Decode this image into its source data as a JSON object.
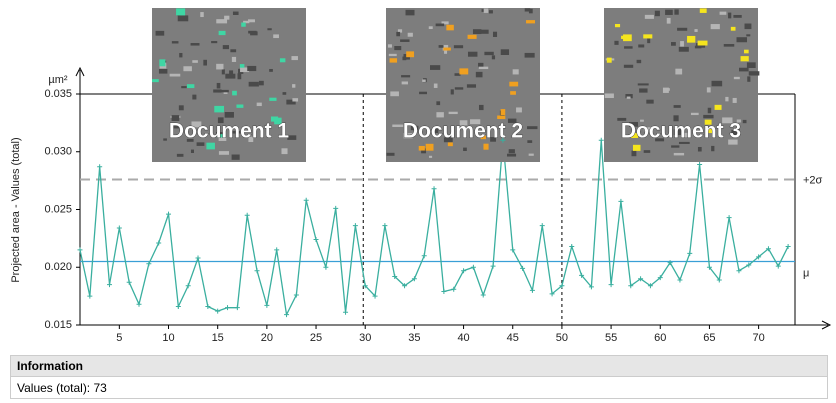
{
  "chart_data": {
    "type": "line",
    "y_label": "Projected area - Values (total)",
    "y_unit": "µm²",
    "x": [
      1,
      2,
      3,
      4,
      5,
      6,
      7,
      8,
      9,
      10,
      11,
      12,
      13,
      14,
      15,
      16,
      17,
      18,
      19,
      20,
      21,
      22,
      23,
      24,
      25,
      26,
      27,
      28,
      29,
      30,
      31,
      32,
      33,
      34,
      35,
      36,
      37,
      38,
      39,
      40,
      41,
      42,
      43,
      44,
      45,
      46,
      47,
      48,
      49,
      50,
      51,
      52,
      53,
      54,
      55,
      56,
      57,
      58,
      59,
      60,
      61,
      62,
      63,
      64,
      65,
      66,
      67,
      68,
      69,
      70,
      71,
      72,
      73
    ],
    "series": [
      {
        "name": "Values (total)",
        "color": "#3aaf9f",
        "values": [
          0.0215,
          0.0175,
          0.0287,
          0.0185,
          0.0234,
          0.0187,
          0.0168,
          0.0203,
          0.0221,
          0.0246,
          0.0166,
          0.0184,
          0.0208,
          0.0166,
          0.0162,
          0.0165,
          0.0165,
          0.0245,
          0.0197,
          0.0167,
          0.0215,
          0.0159,
          0.0176,
          0.0258,
          0.0224,
          0.02,
          0.0251,
          0.0161,
          0.0236,
          0.0184,
          0.0175,
          0.0236,
          0.0192,
          0.0184,
          0.019,
          0.021,
          0.0268,
          0.0179,
          0.0181,
          0.0197,
          0.02,
          0.0176,
          0.0201,
          0.031,
          0.0215,
          0.0199,
          0.018,
          0.0236,
          0.0177,
          0.0184,
          0.0218,
          0.0193,
          0.0183,
          0.031,
          0.0185,
          0.0257,
          0.0184,
          0.019,
          0.0184,
          0.0191,
          0.0204,
          0.0189,
          0.0212,
          0.0289,
          0.02,
          0.0189,
          0.0243,
          0.0197,
          0.0202,
          0.0209,
          0.0216,
          0.0201,
          0.0218
        ]
      }
    ],
    "xlim": [
      1,
      73.7
    ],
    "xticks": [
      5,
      10,
      15,
      20,
      25,
      30,
      35,
      40,
      45,
      50,
      55,
      60,
      65,
      70
    ],
    "ylim": [
      0.015,
      0.035
    ],
    "yticks": [
      0.015,
      {
        "value": 0.02,
        "label": "0.020"
      },
      0.025,
      {
        "value": 0.03,
        "label": "0.030"
      },
      0.035
    ],
    "reference_lines": [
      {
        "label": "μ",
        "value": 0.0205,
        "color": "#3a9fd6",
        "dashed": false
      },
      {
        "label": "+2σ",
        "value": 0.0276,
        "color": "#aaaaaa",
        "dashed": true
      }
    ],
    "separators": [
      29.8,
      50
    ],
    "documents": [
      {
        "label": "Document 1",
        "color": "#3fd6a4"
      },
      {
        "label": "Document 2",
        "color": "#f0a020"
      },
      {
        "label": "Document 3",
        "color": "#f5e51e"
      }
    ]
  },
  "info": {
    "title": "Information",
    "text": "Values (total): 73"
  }
}
